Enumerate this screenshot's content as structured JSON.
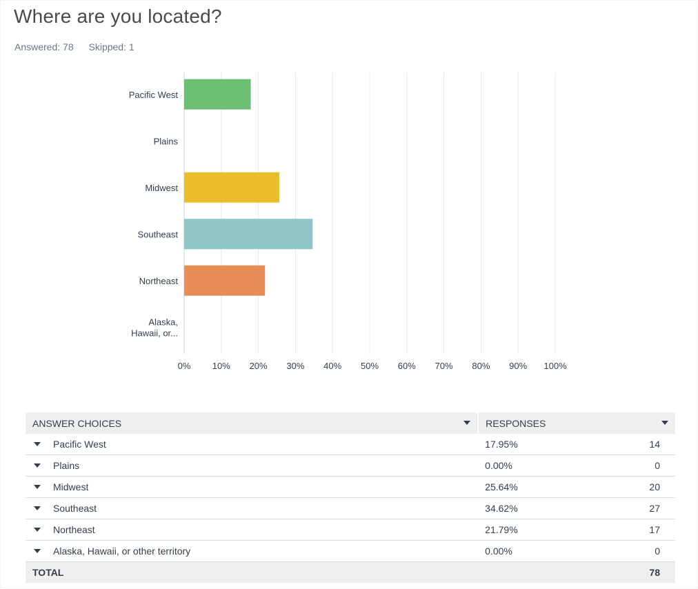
{
  "question": {
    "title": "Where are you located?",
    "answered_label": "Answered: 78",
    "skipped_label": "Skipped: 1"
  },
  "chart_data": {
    "type": "bar",
    "orientation": "horizontal",
    "categories": [
      "Pacific West",
      "Plains",
      "Midwest",
      "Southeast",
      "Northeast",
      "Alaska, Hawaii, or other territory"
    ],
    "category_labels_display": [
      [
        "Pacific West"
      ],
      [
        "Plains"
      ],
      [
        "Midwest"
      ],
      [
        "Southeast"
      ],
      [
        "Northeast"
      ],
      [
        "Alaska,",
        "Hawaii, or..."
      ]
    ],
    "values": [
      17.95,
      0.0,
      25.64,
      34.62,
      21.79,
      0.0
    ],
    "colors": [
      "#6bbf73",
      "#6bbf73",
      "#e9bd2e",
      "#8ec6c9",
      "#e78d56",
      "#a987c0"
    ],
    "xlim": [
      0,
      100
    ],
    "xticks": [
      "0%",
      "10%",
      "20%",
      "30%",
      "40%",
      "50%",
      "60%",
      "70%",
      "80%",
      "90%",
      "100%"
    ],
    "grid": true,
    "title": "",
    "xlabel": "",
    "ylabel": ""
  },
  "table": {
    "headers": {
      "choices": "ANSWER CHOICES",
      "responses": "RESPONSES"
    },
    "rows": [
      {
        "choice": "Pacific West",
        "percent": "17.95%",
        "count": "14"
      },
      {
        "choice": "Plains",
        "percent": "0.00%",
        "count": "0"
      },
      {
        "choice": "Midwest",
        "percent": "25.64%",
        "count": "20"
      },
      {
        "choice": "Southeast",
        "percent": "34.62%",
        "count": "27"
      },
      {
        "choice": "Northeast",
        "percent": "21.79%",
        "count": "17"
      },
      {
        "choice": "Alaska, Hawaii, or other territory",
        "percent": "0.00%",
        "count": "0"
      }
    ],
    "total": {
      "label": "TOTAL",
      "count": "78"
    }
  }
}
